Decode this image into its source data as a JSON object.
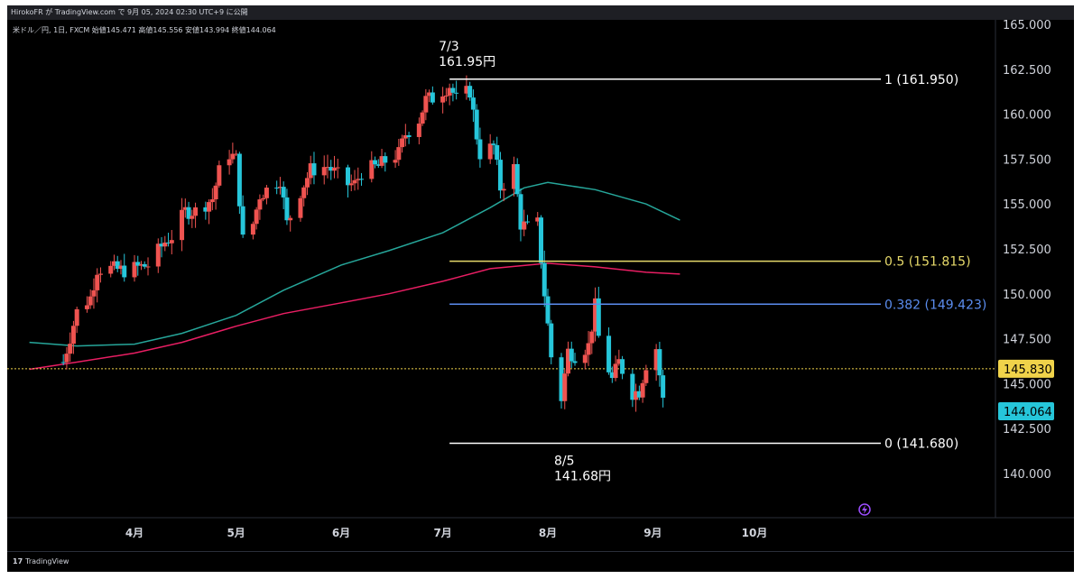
{
  "header": {
    "text": "HirokoFR が TradingView.com で 9月 05, 2024 02:30 UTC+9 に公開"
  },
  "legend": {
    "symbol": "米ドル／円, 1日, FXCM",
    "open": "始値145.471",
    "high": "高値145.556",
    "low": "安値143.994",
    "close": "終値144.064"
  },
  "footer": {
    "logo": "17",
    "brand": "TradingView"
  },
  "colors": {
    "up": "#ef5350",
    "down": "#26c6da",
    "ma_teal": "#26a69a",
    "ma_pink": "#e91e63",
    "fib_1": "#ffffff",
    "fib_05": "#e6d96a",
    "fib_0382": "#5b8def",
    "fib_0": "#ffffff",
    "prev_close": "#f0d34a",
    "current": "#26c6da"
  },
  "chart_data": {
    "type": "candlestick",
    "y_ticks": [
      "165.000",
      "162.500",
      "160.000",
      "157.500",
      "155.000",
      "152.500",
      "150.000",
      "147.500",
      "145.000",
      "142.500",
      "140.000"
    ],
    "x_ticks": [
      {
        "label": "4月",
        "date": "2024-04-01"
      },
      {
        "label": "5月",
        "date": "2024-05-01"
      },
      {
        "label": "6月",
        "date": "2024-06-01"
      },
      {
        "label": "7月",
        "date": "2024-07-01"
      },
      {
        "label": "8月",
        "date": "2024-08-01"
      },
      {
        "label": "9月",
        "date": "2024-09-01"
      },
      {
        "label": "10月",
        "date": "2024-10-01"
      }
    ],
    "ylim": [
      138,
      165
    ],
    "fib_levels": [
      {
        "label": "1 (161.950)",
        "value": 161.95,
        "color": "#ffffff"
      },
      {
        "label": "0.5 (151.815)",
        "value": 151.815,
        "color": "#e6d96a"
      },
      {
        "label": "0.382 (149.423)",
        "value": 149.423,
        "color": "#5b8def"
      },
      {
        "label": "0 (141.680)",
        "value": 141.68,
        "color": "#ffffff"
      }
    ],
    "annotations": [
      {
        "line1": "7/3",
        "line2": "161.95円",
        "date": "2024-07-03",
        "value": 161.95
      },
      {
        "line1": "8/5",
        "line2": "141.68円",
        "date": "2024-08-05",
        "value": 141.68
      }
    ],
    "price_tags": [
      {
        "label": "145.830",
        "value": 145.83,
        "kind": "prev_close"
      },
      {
        "label": "144.064",
        "value": 144.064,
        "kind": "current"
      }
    ],
    "ohlc_path": [
      [
        "2024-03-11",
        146.2
      ],
      [
        "2024-03-15",
        149.0
      ],
      [
        "2024-03-19",
        149.8
      ],
      [
        "2024-03-21",
        151.4
      ],
      [
        "2024-03-25",
        151.4
      ],
      [
        "2024-03-29",
        151.3
      ],
      [
        "2024-04-05",
        151.6
      ],
      [
        "2024-04-10",
        152.9
      ],
      [
        "2024-04-12",
        153.2
      ],
      [
        "2024-04-16",
        154.6
      ],
      [
        "2024-04-19",
        154.6
      ],
      [
        "2024-04-24",
        155.3
      ],
      [
        "2024-04-26",
        156.8
      ],
      [
        "2024-04-29",
        157.8
      ],
      [
        "2024-05-01",
        157.5
      ],
      [
        "2024-05-03",
        153.0
      ],
      [
        "2024-05-06",
        153.9
      ],
      [
        "2024-05-08",
        155.5
      ],
      [
        "2024-05-10",
        155.8
      ],
      [
        "2024-05-14",
        156.4
      ],
      [
        "2024-05-16",
        153.9
      ],
      [
        "2024-05-20",
        155.7
      ],
      [
        "2024-05-23",
        156.9
      ],
      [
        "2024-05-28",
        157.1
      ],
      [
        "2024-06-03",
        156.1
      ],
      [
        "2024-06-05",
        156.1
      ],
      [
        "2024-06-07",
        156.8
      ],
      [
        "2024-06-10",
        157.0
      ],
      [
        "2024-06-12",
        157.1
      ],
      [
        "2024-06-14",
        157.4
      ],
      [
        "2024-06-18",
        157.8
      ],
      [
        "2024-06-20",
        158.9
      ],
      [
        "2024-06-24",
        159.7
      ],
      [
        "2024-06-26",
        160.8
      ],
      [
        "2024-06-28",
        160.9
      ],
      [
        "2024-07-03",
        161.6
      ],
      [
        "2024-07-05",
        160.8
      ],
      [
        "2024-07-09",
        161.3
      ],
      [
        "2024-07-11",
        158.8
      ],
      [
        "2024-07-12",
        157.8
      ],
      [
        "2024-07-16",
        158.2
      ],
      [
        "2024-07-18",
        155.9
      ],
      [
        "2024-07-22",
        157.0
      ],
      [
        "2024-07-24",
        153.9
      ],
      [
        "2024-07-26",
        153.7
      ],
      [
        "2024-07-29",
        153.9
      ],
      [
        "2024-07-31",
        150.0
      ],
      [
        "2024-08-02",
        146.5
      ],
      [
        "2024-08-05",
        144.2
      ],
      [
        "2024-08-07",
        146.8
      ],
      [
        "2024-08-09",
        146.6
      ],
      [
        "2024-08-13",
        147.1
      ],
      [
        "2024-08-15",
        149.3
      ],
      [
        "2024-08-16",
        147.6
      ],
      [
        "2024-08-20",
        145.2
      ],
      [
        "2024-08-22",
        146.2
      ],
      [
        "2024-08-26",
        144.5
      ],
      [
        "2024-08-28",
        144.6
      ],
      [
        "2024-08-30",
        146.1
      ],
      [
        "2024-09-02",
        147.0
      ],
      [
        "2024-09-03",
        145.5
      ],
      [
        "2024-09-04",
        144.064
      ]
    ],
    "ma_teal": [
      [
        "2024-03-01",
        147.3
      ],
      [
        "2024-03-15",
        147.1
      ],
      [
        "2024-04-01",
        147.2
      ],
      [
        "2024-04-15",
        147.8
      ],
      [
        "2024-05-01",
        148.8
      ],
      [
        "2024-05-15",
        150.2
      ],
      [
        "2024-06-01",
        151.6
      ],
      [
        "2024-06-15",
        152.4
      ],
      [
        "2024-07-01",
        153.4
      ],
      [
        "2024-07-15",
        154.8
      ],
      [
        "2024-07-25",
        155.9
      ],
      [
        "2024-08-01",
        156.2
      ],
      [
        "2024-08-15",
        155.8
      ],
      [
        "2024-08-30",
        155.0
      ],
      [
        "2024-09-09",
        154.1
      ]
    ],
    "ma_pink": [
      [
        "2024-03-01",
        145.8
      ],
      [
        "2024-03-15",
        146.2
      ],
      [
        "2024-04-01",
        146.7
      ],
      [
        "2024-04-15",
        147.3
      ],
      [
        "2024-05-01",
        148.2
      ],
      [
        "2024-05-15",
        148.9
      ],
      [
        "2024-06-01",
        149.5
      ],
      [
        "2024-06-15",
        150.0
      ],
      [
        "2024-07-01",
        150.7
      ],
      [
        "2024-07-15",
        151.4
      ],
      [
        "2024-08-01",
        151.7
      ],
      [
        "2024-08-15",
        151.5
      ],
      [
        "2024-08-30",
        151.2
      ],
      [
        "2024-09-09",
        151.1
      ]
    ]
  }
}
